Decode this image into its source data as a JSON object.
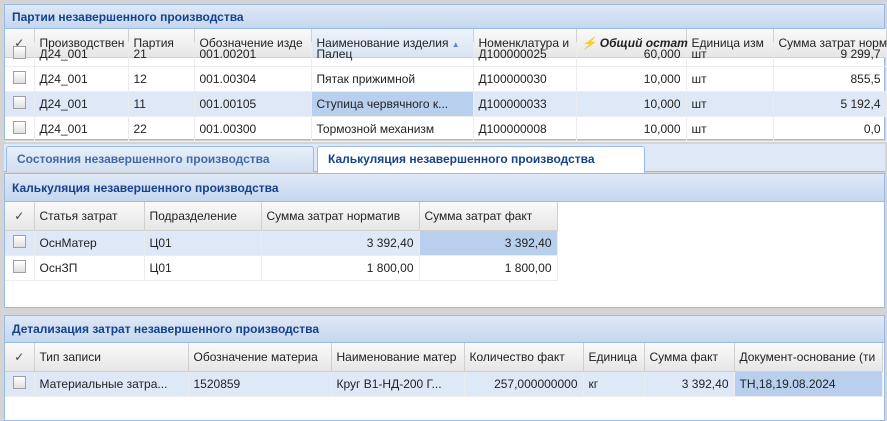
{
  "panel1": {
    "title": "Партии незавершенного производства",
    "columns": [
      "Производствен",
      "Партия",
      "Обозначение изде",
      "Наименование изделия",
      "Номенклатура и",
      "Общий остат",
      "Единица изм",
      "Сумма затрат норм"
    ],
    "rows": [
      [
        "Д24_001",
        "21",
        "001.00201",
        "Палец",
        "Д100000025",
        "60,000",
        "шт",
        "9 299,7"
      ],
      [
        "Д24_001",
        "12",
        "001.00304",
        "Пятак прижимной",
        "Д100000030",
        "10,000",
        "шт",
        "855,5"
      ],
      [
        "Д24_001",
        "11",
        "001.00105",
        "Ступица червячного к...",
        "Д100000033",
        "10,000",
        "шт",
        "5 192,4"
      ],
      [
        "Д24_001",
        "22",
        "001.00300",
        "Тормозной механизм",
        "Д100000008",
        "10,000",
        "шт",
        "0,0"
      ]
    ]
  },
  "tabs": [
    {
      "label": "Состояния незавершенного производства"
    },
    {
      "label": "Калькуляция незавершенного производства",
      "active": true
    }
  ],
  "panel2": {
    "title": "Калькуляция незавершенного производства",
    "columns": [
      "Статья затрат",
      "Подразделение",
      "Сумма затрат норматив",
      "Сумма затрат факт"
    ],
    "rows": [
      [
        "ОснМатер",
        "Ц01",
        "3 392,40",
        "3 392,40"
      ],
      [
        "ОснЗП",
        "Ц01",
        "1 800,00",
        "1 800,00"
      ]
    ]
  },
  "panel3": {
    "title": "Детализация затрат незавершенного производства",
    "columns": [
      "Тип записи",
      "Обозначение материа",
      "Наименование матер",
      "Количество факт",
      "Единица",
      "Сумма факт",
      "Документ-основание (ти"
    ],
    "rows": [
      [
        "Материальные затра...",
        "1520859",
        "Круг В1-НД-200 Г...",
        "257,000000000",
        "кг",
        "3 392,40",
        "ТН,18,19.08.2024"
      ]
    ]
  },
  "colors": {
    "header_text": "#15428b",
    "selection": "#dfe8f6",
    "cell_selection": "#b8cfee"
  },
  "icons": {
    "check_header": "check-icon",
    "sort": "sort-asc-icon",
    "filter": "filter-icon"
  }
}
